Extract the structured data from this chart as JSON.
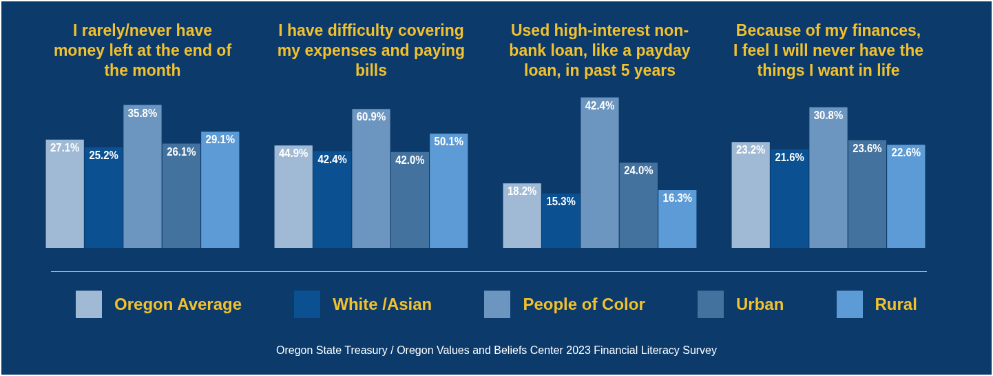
{
  "chart_data": [
    {
      "type": "bar",
      "title": "I rarely/never have money left at the end of the month",
      "categories": [
        null
      ],
      "series": [
        {
          "name": "Oregon Average",
          "color": "#a0bad6",
          "values": [
            27.1
          ],
          "value_labels": [
            "27.1%"
          ]
        },
        {
          "name": "White /Asian",
          "color": "#0b5192",
          "values": [
            25.2
          ],
          "value_labels": [
            "25.2%"
          ]
        },
        {
          "name": "People of Color",
          "color": "#6c95bf",
          "values": [
            35.8
          ],
          "value_labels": [
            "35.8%"
          ]
        },
        {
          "name": "Urban",
          "color": "#44729e",
          "values": [
            26.1
          ],
          "value_labels": [
            "26.1%"
          ]
        },
        {
          "name": "Rural",
          "color": "#5d9bd6",
          "values": [
            29.1
          ],
          "value_labels": [
            "29.1%"
          ]
        }
      ],
      "tick_labels": false,
      "legend": "bottom"
    },
    {
      "type": "bar",
      "title": "I have difficulty covering my expenses and paying bills",
      "categories": [
        null
      ],
      "series": [
        {
          "color": "#a0bad6",
          "values": [
            44.9
          ],
          "value_labels": [
            "44.9%"
          ]
        },
        {
          "color": "#0b5192",
          "values": [
            42.4
          ],
          "value_labels": [
            "42.4%"
          ]
        },
        {
          "color": "#6c95bf",
          "values": [
            60.9
          ],
          "value_labels": [
            "60.9%"
          ]
        },
        {
          "color": "#44729e",
          "values": [
            42.0
          ],
          "value_labels": [
            "42.0%"
          ]
        },
        {
          "color": "#5d9bd6",
          "values": [
            50.1
          ],
          "value_labels": [
            "50.1%"
          ]
        }
      ],
      "tick_labels": false
    },
    {
      "type": "bar",
      "title": "Used high-interest non-bank loan, like a payday loan, in past 5 years",
      "categories": [
        null
      ],
      "series": [
        {
          "color": "#a0bad6",
          "values": [
            18.2
          ],
          "value_labels": [
            "18.2%"
          ]
        },
        {
          "color": "#0b5192",
          "values": [
            15.3
          ],
          "value_labels": [
            "15.3%"
          ]
        },
        {
          "color": "#6c95bf",
          "values": [
            42.4
          ],
          "value_labels": [
            "42.4%"
          ]
        },
        {
          "color": "#44729e",
          "values": [
            24.0
          ],
          "value_labels": [
            "24.0%"
          ]
        },
        {
          "color": "#5d9bd6",
          "values": [
            16.3
          ],
          "value_labels": [
            "16.3%"
          ]
        }
      ],
      "tick_labels": false
    },
    {
      "type": "bar",
      "title": "Because of my finances, I feel I will never have the things I want in life",
      "categories": [
        null
      ],
      "series": [
        {
          "color": "#a0bad6",
          "values": [
            23.2
          ],
          "value_labels": [
            "23.2%"
          ]
        },
        {
          "color": "#0b5192",
          "values": [
            21.6
          ],
          "value_labels": [
            "21.6%"
          ]
        },
        {
          "color": "#6c95bf",
          "values": [
            30.8
          ],
          "value_labels": [
            "30.8%"
          ]
        },
        {
          "color": "#44729e",
          "values": [
            23.6
          ],
          "value_labels": [
            "23.6%"
          ]
        },
        {
          "color": "#5d9bd6",
          "values": [
            22.6
          ],
          "value_labels": [
            "22.6%"
          ]
        }
      ],
      "tick_labels": false,
      "annotations": [
        "Oregon State Treasury / Oregon Values and Beliefs Center 2023 Financial Literacy Survey"
      ]
    }
  ]
}
